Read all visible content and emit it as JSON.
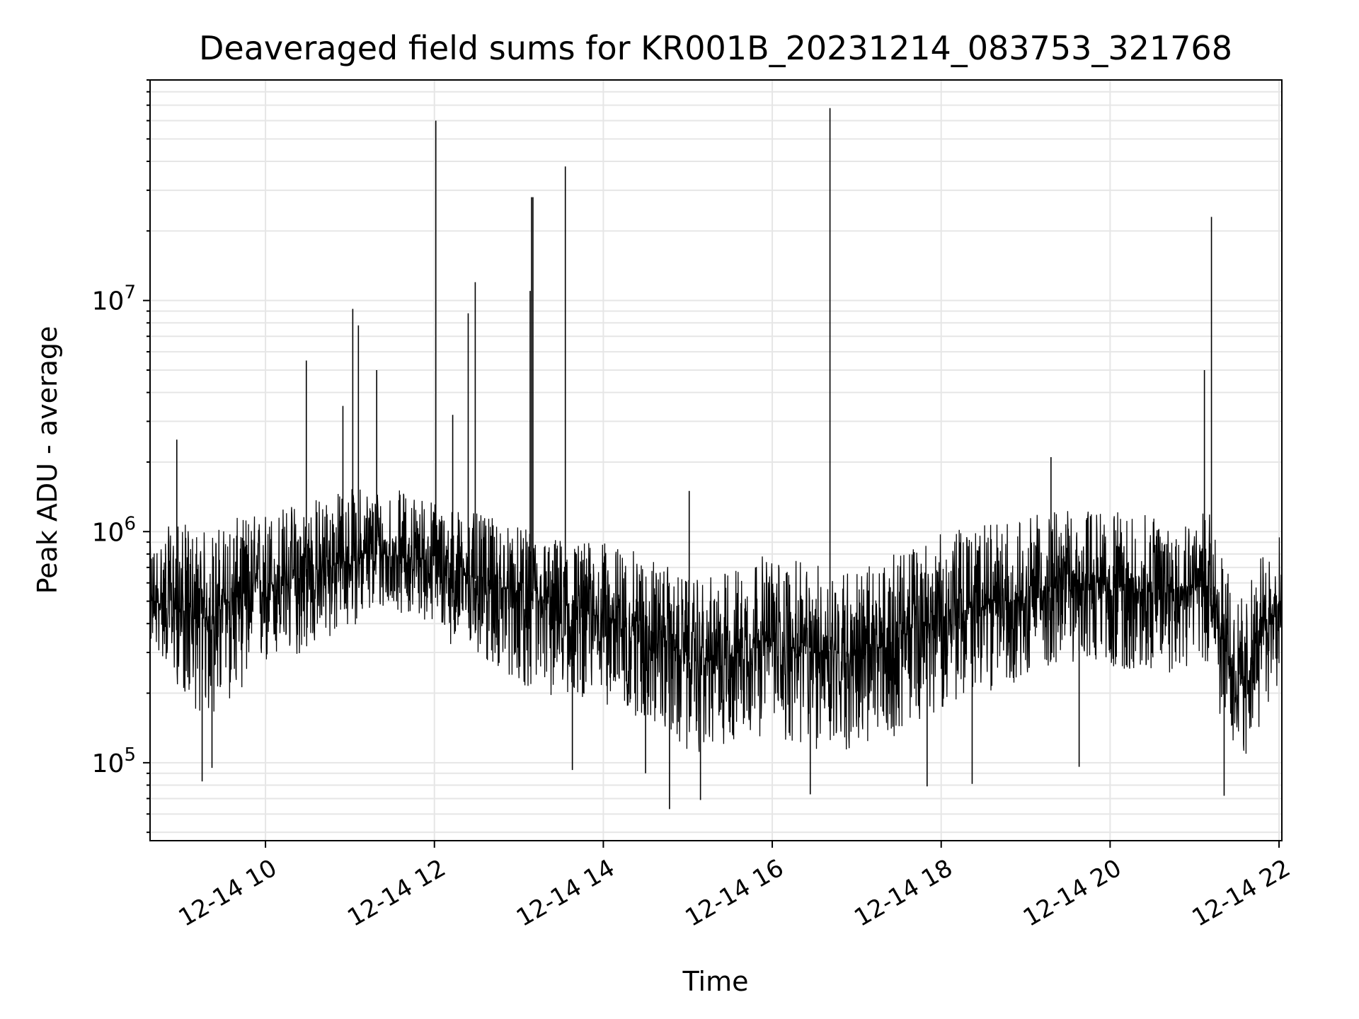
{
  "chart_data": {
    "type": "line",
    "title": "Deaveraged field sums for KR001B_20231214_083753_321768",
    "xlabel": "Time",
    "ylabel": "Peak ADU - average",
    "yscale": "log",
    "xlim": [
      "2023-12-14 08:38",
      "2023-12-14 22:02"
    ],
    "ylim": [
      46000,
      90000000
    ],
    "grid": true,
    "legend": "none",
    "x_ticks": [
      {
        "value": "2023-12-14 10:00",
        "label": "12-14 10"
      },
      {
        "value": "2023-12-14 12:00",
        "label": "12-14 12"
      },
      {
        "value": "2023-12-14 14:00",
        "label": "12-14 14"
      },
      {
        "value": "2023-12-14 16:00",
        "label": "12-14 16"
      },
      {
        "value": "2023-12-14 18:00",
        "label": "12-14 18"
      },
      {
        "value": "2023-12-14 20:00",
        "label": "12-14 20"
      },
      {
        "value": "2023-12-14 22:00",
        "label": "12-14 22"
      }
    ],
    "y_ticks": [
      {
        "value": 100000,
        "base": "10",
        "exp": "5"
      },
      {
        "value": 1000000,
        "base": "10",
        "exp": "6"
      },
      {
        "value": 10000000,
        "base": "10",
        "exp": "7"
      }
    ],
    "colors": {
      "line": "#000000",
      "grid": "#e6e6e6",
      "axes": "#000000"
    },
    "series": [
      {
        "x": [
          "2023-12-14 08:40",
          "2023-12-14 08:50",
          "2023-12-14 09:00",
          "2023-12-14 09:10",
          "2023-12-14 09:20",
          "2023-12-14 09:30",
          "2023-12-14 09:40",
          "2023-12-14 09:50",
          "2023-12-14 10:00",
          "2023-12-14 10:10",
          "2023-12-14 10:20",
          "2023-12-14 10:30",
          "2023-12-14 10:40",
          "2023-12-14 10:50",
          "2023-12-14 11:00",
          "2023-12-14 11:10",
          "2023-12-14 11:20",
          "2023-12-14 11:30",
          "2023-12-14 11:40",
          "2023-12-14 11:50",
          "2023-12-14 12:00",
          "2023-12-14 12:10",
          "2023-12-14 12:20",
          "2023-12-14 12:30",
          "2023-12-14 12:40",
          "2023-12-14 12:50",
          "2023-12-14 13:00",
          "2023-12-14 13:10",
          "2023-12-14 13:20",
          "2023-12-14 13:30",
          "2023-12-14 13:40",
          "2023-12-14 13:50",
          "2023-12-14 14:00",
          "2023-12-14 14:10",
          "2023-12-14 14:20",
          "2023-12-14 14:30",
          "2023-12-14 14:40",
          "2023-12-14 14:50",
          "2023-12-14 15:00",
          "2023-12-14 15:10",
          "2023-12-14 15:20",
          "2023-12-14 15:30",
          "2023-12-14 15:40",
          "2023-12-14 15:50",
          "2023-12-14 16:00",
          "2023-12-14 16:10",
          "2023-12-14 16:20",
          "2023-12-14 16:30",
          "2023-12-14 16:40",
          "2023-12-14 16:50",
          "2023-12-14 17:00",
          "2023-12-14 17:10",
          "2023-12-14 17:20",
          "2023-12-14 17:30",
          "2023-12-14 17:40",
          "2023-12-14 17:50",
          "2023-12-14 18:00",
          "2023-12-14 18:10",
          "2023-12-14 18:20",
          "2023-12-14 18:30",
          "2023-12-14 18:40",
          "2023-12-14 18:50",
          "2023-12-14 19:00",
          "2023-12-14 19:10",
          "2023-12-14 19:20",
          "2023-12-14 19:30",
          "2023-12-14 19:40",
          "2023-12-14 19:50",
          "2023-12-14 20:00",
          "2023-12-14 20:10",
          "2023-12-14 20:20",
          "2023-12-14 20:30",
          "2023-12-14 20:40",
          "2023-12-14 20:50",
          "2023-12-14 21:00",
          "2023-12-14 21:10",
          "2023-12-14 21:20",
          "2023-12-14 21:30",
          "2023-12-14 21:40",
          "2023-12-14 21:50",
          "2023-12-14 22:00"
        ],
        "y": [
          480000,
          500000,
          460000,
          430000,
          420000,
          480000,
          520000,
          560000,
          580000,
          600000,
          620000,
          650000,
          690000,
          720000,
          760000,
          800000,
          800000,
          790000,
          780000,
          770000,
          720000,
          680000,
          660000,
          620000,
          580000,
          560000,
          540000,
          500000,
          480000,
          480000,
          460000,
          450000,
          430000,
          410000,
          390000,
          380000,
          360000,
          320000,
          280000,
          270000,
          280000,
          300000,
          330000,
          340000,
          330000,
          320000,
          310000,
          300000,
          310000,
          300000,
          290000,
          300000,
          320000,
          350000,
          380000,
          400000,
          420000,
          440000,
          460000,
          480000,
          490000,
          500000,
          520000,
          560000,
          580000,
          590000,
          600000,
          600000,
          580000,
          570000,
          560000,
          550000,
          560000,
          580000,
          600000,
          580000,
          380000,
          200000,
          260000,
          380000,
          480000
        ],
        "low": [
          320000,
          260000,
          200000,
          170000,
          150000,
          170000,
          200000,
          230000,
          250000,
          270000,
          280000,
          300000,
          320000,
          350000,
          380000,
          420000,
          440000,
          450000,
          440000,
          420000,
          390000,
          330000,
          300000,
          280000,
          260000,
          240000,
          220000,
          200000,
          190000,
          190000,
          190000,
          190000,
          180000,
          170000,
          160000,
          150000,
          140000,
          120000,
          110000,
          110000,
          115000,
          120000,
          125000,
          130000,
          125000,
          120000,
          115000,
          110000,
          115000,
          112000,
          110000,
          115000,
          120000,
          135000,
          150000,
          160000,
          170000,
          180000,
          190000,
          200000,
          210000,
          220000,
          230000,
          250000,
          260000,
          270000,
          270000,
          270000,
          260000,
          250000,
          250000,
          240000,
          240000,
          250000,
          270000,
          250000,
          140000,
          90000,
          110000,
          160000,
          220000
        ],
        "high": [
          900000,
          1050000,
          1100000,
          1050000,
          1000000,
          1100000,
          1150000,
          1200000,
          1250000,
          1300000,
          1350000,
          1400000,
          1450000,
          1500000,
          1550000,
          1600000,
          1600000,
          1550000,
          1500000,
          1450000,
          1400000,
          1300000,
          1250000,
          1200000,
          1150000,
          1100000,
          1050000,
          1000000,
          950000,
          950000,
          930000,
          920000,
          900000,
          870000,
          830000,
          800000,
          750000,
          680000,
          620000,
          620000,
          650000,
          700000,
          750000,
          800000,
          780000,
          760000,
          740000,
          720000,
          740000,
          720000,
          700000,
          720000,
          760000,
          820000,
          880000,
          930000,
          980000,
          1020000,
          1050000,
          1080000,
          1100000,
          1120000,
          1150000,
          1200000,
          1230000,
          1250000,
          1260000,
          1260000,
          1230000,
          1210000,
          1200000,
          1180000,
          1200000,
          1230000,
          1260000,
          1230000,
          850000,
          500000,
          620000,
          850000,
          1000000
        ]
      }
    ],
    "spikes": [
      {
        "x": "2023-12-14 08:57",
        "y": 2500000
      },
      {
        "x": "2023-12-14 10:29",
        "y": 5500000
      },
      {
        "x": "2023-12-14 10:55",
        "y": 3500000
      },
      {
        "x": "2023-12-14 11:02",
        "y": 9200000
      },
      {
        "x": "2023-12-14 11:06",
        "y": 7800000
      },
      {
        "x": "2023-12-14 11:19",
        "y": 5000000
      },
      {
        "x": "2023-12-14 12:01",
        "y": 60000000
      },
      {
        "x": "2023-12-14 12:13",
        "y": 3200000
      },
      {
        "x": "2023-12-14 12:24",
        "y": 8800000
      },
      {
        "x": "2023-12-14 12:29",
        "y": 12000000
      },
      {
        "x": "2023-12-14 13:08",
        "y": 11000000
      },
      {
        "x": "2023-12-14 13:09",
        "y": 28000000
      },
      {
        "x": "2023-12-14 13:10",
        "y": 28000000
      },
      {
        "x": "2023-12-14 13:33",
        "y": 38000000
      },
      {
        "x": "2023-12-14 15:01",
        "y": 1500000
      },
      {
        "x": "2023-12-14 16:41",
        "y": 68000000
      },
      {
        "x": "2023-12-14 19:18",
        "y": 2100000
      },
      {
        "x": "2023-12-14 21:07",
        "y": 5000000
      },
      {
        "x": "2023-12-14 21:12",
        "y": 23000000
      }
    ],
    "dips": [
      {
        "x": "2023-12-14 09:15",
        "y": 83000
      },
      {
        "x": "2023-12-14 09:22",
        "y": 95000
      },
      {
        "x": "2023-12-14 13:38",
        "y": 93000
      },
      {
        "x": "2023-12-14 14:30",
        "y": 90000
      },
      {
        "x": "2023-12-14 14:47",
        "y": 63000
      },
      {
        "x": "2023-12-14 15:09",
        "y": 69000
      },
      {
        "x": "2023-12-14 16:27",
        "y": 73000
      },
      {
        "x": "2023-12-14 17:50",
        "y": 79000
      },
      {
        "x": "2023-12-14 18:22",
        "y": 81000
      },
      {
        "x": "2023-12-14 19:38",
        "y": 96000
      },
      {
        "x": "2023-12-14 21:21",
        "y": 72000
      }
    ]
  }
}
